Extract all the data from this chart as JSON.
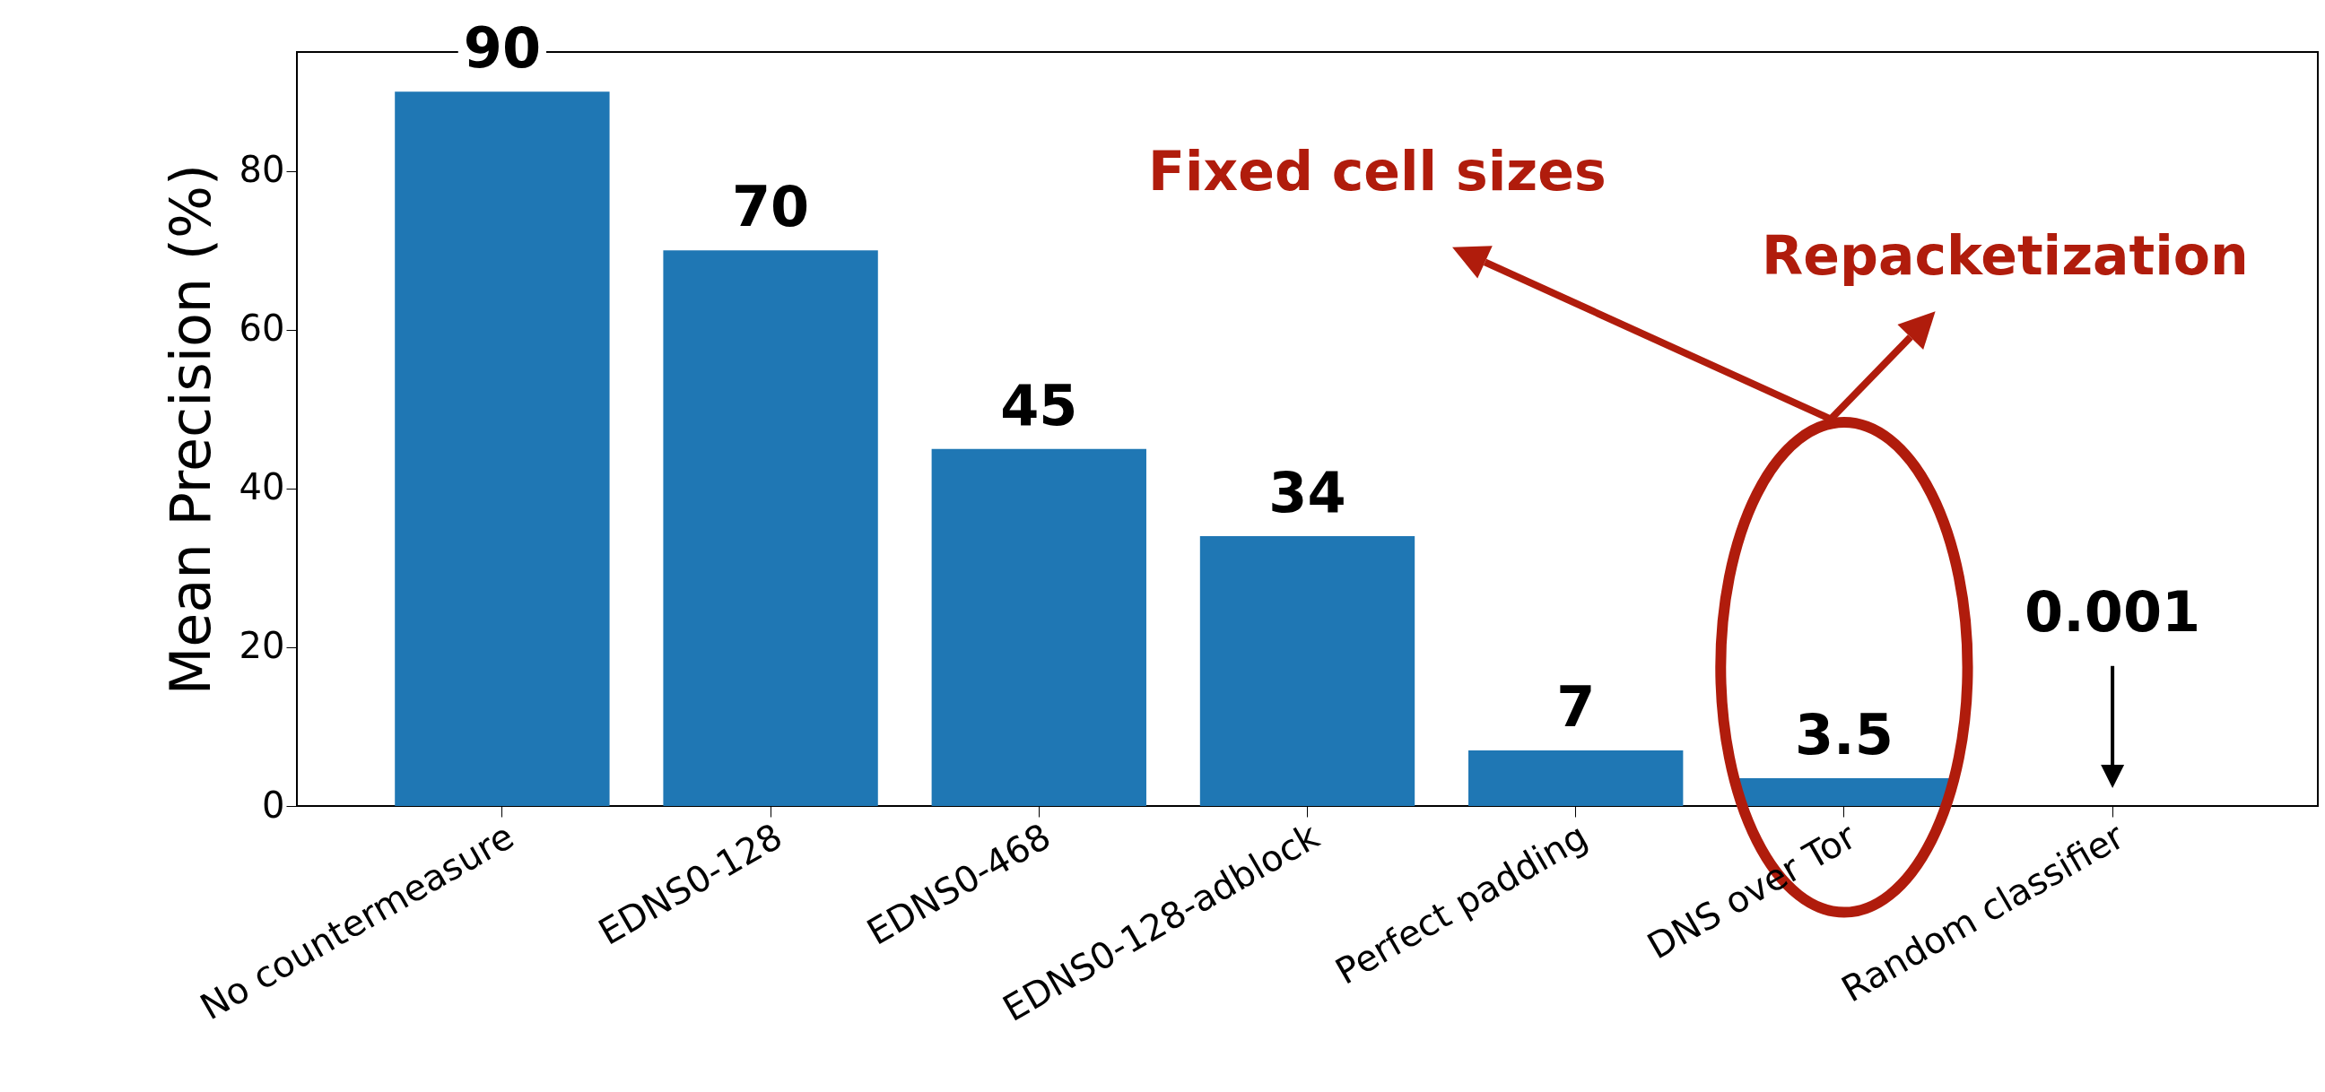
{
  "chart_data": {
    "type": "bar",
    "ylabel": "Mean Precision (%)",
    "categories": [
      "No countermeasure",
      "EDNS0-128",
      "EDNS0-468",
      "EDNS0-128-adblock",
      "Perfect padding",
      "DNS over Tor",
      "Random classifier"
    ],
    "values": [
      90,
      70,
      45,
      34,
      7,
      3.5,
      0.001
    ],
    "value_labels": [
      "90",
      "70",
      "45",
      "34",
      "7",
      "3.5",
      "0.001"
    ],
    "color": "#1f77b4",
    "ylim": [
      0,
      95
    ],
    "yticks": [
      0,
      20,
      40,
      60,
      80
    ],
    "grid": false,
    "annotations": [
      "Fixed cell sizes",
      "Repacketization"
    ]
  }
}
